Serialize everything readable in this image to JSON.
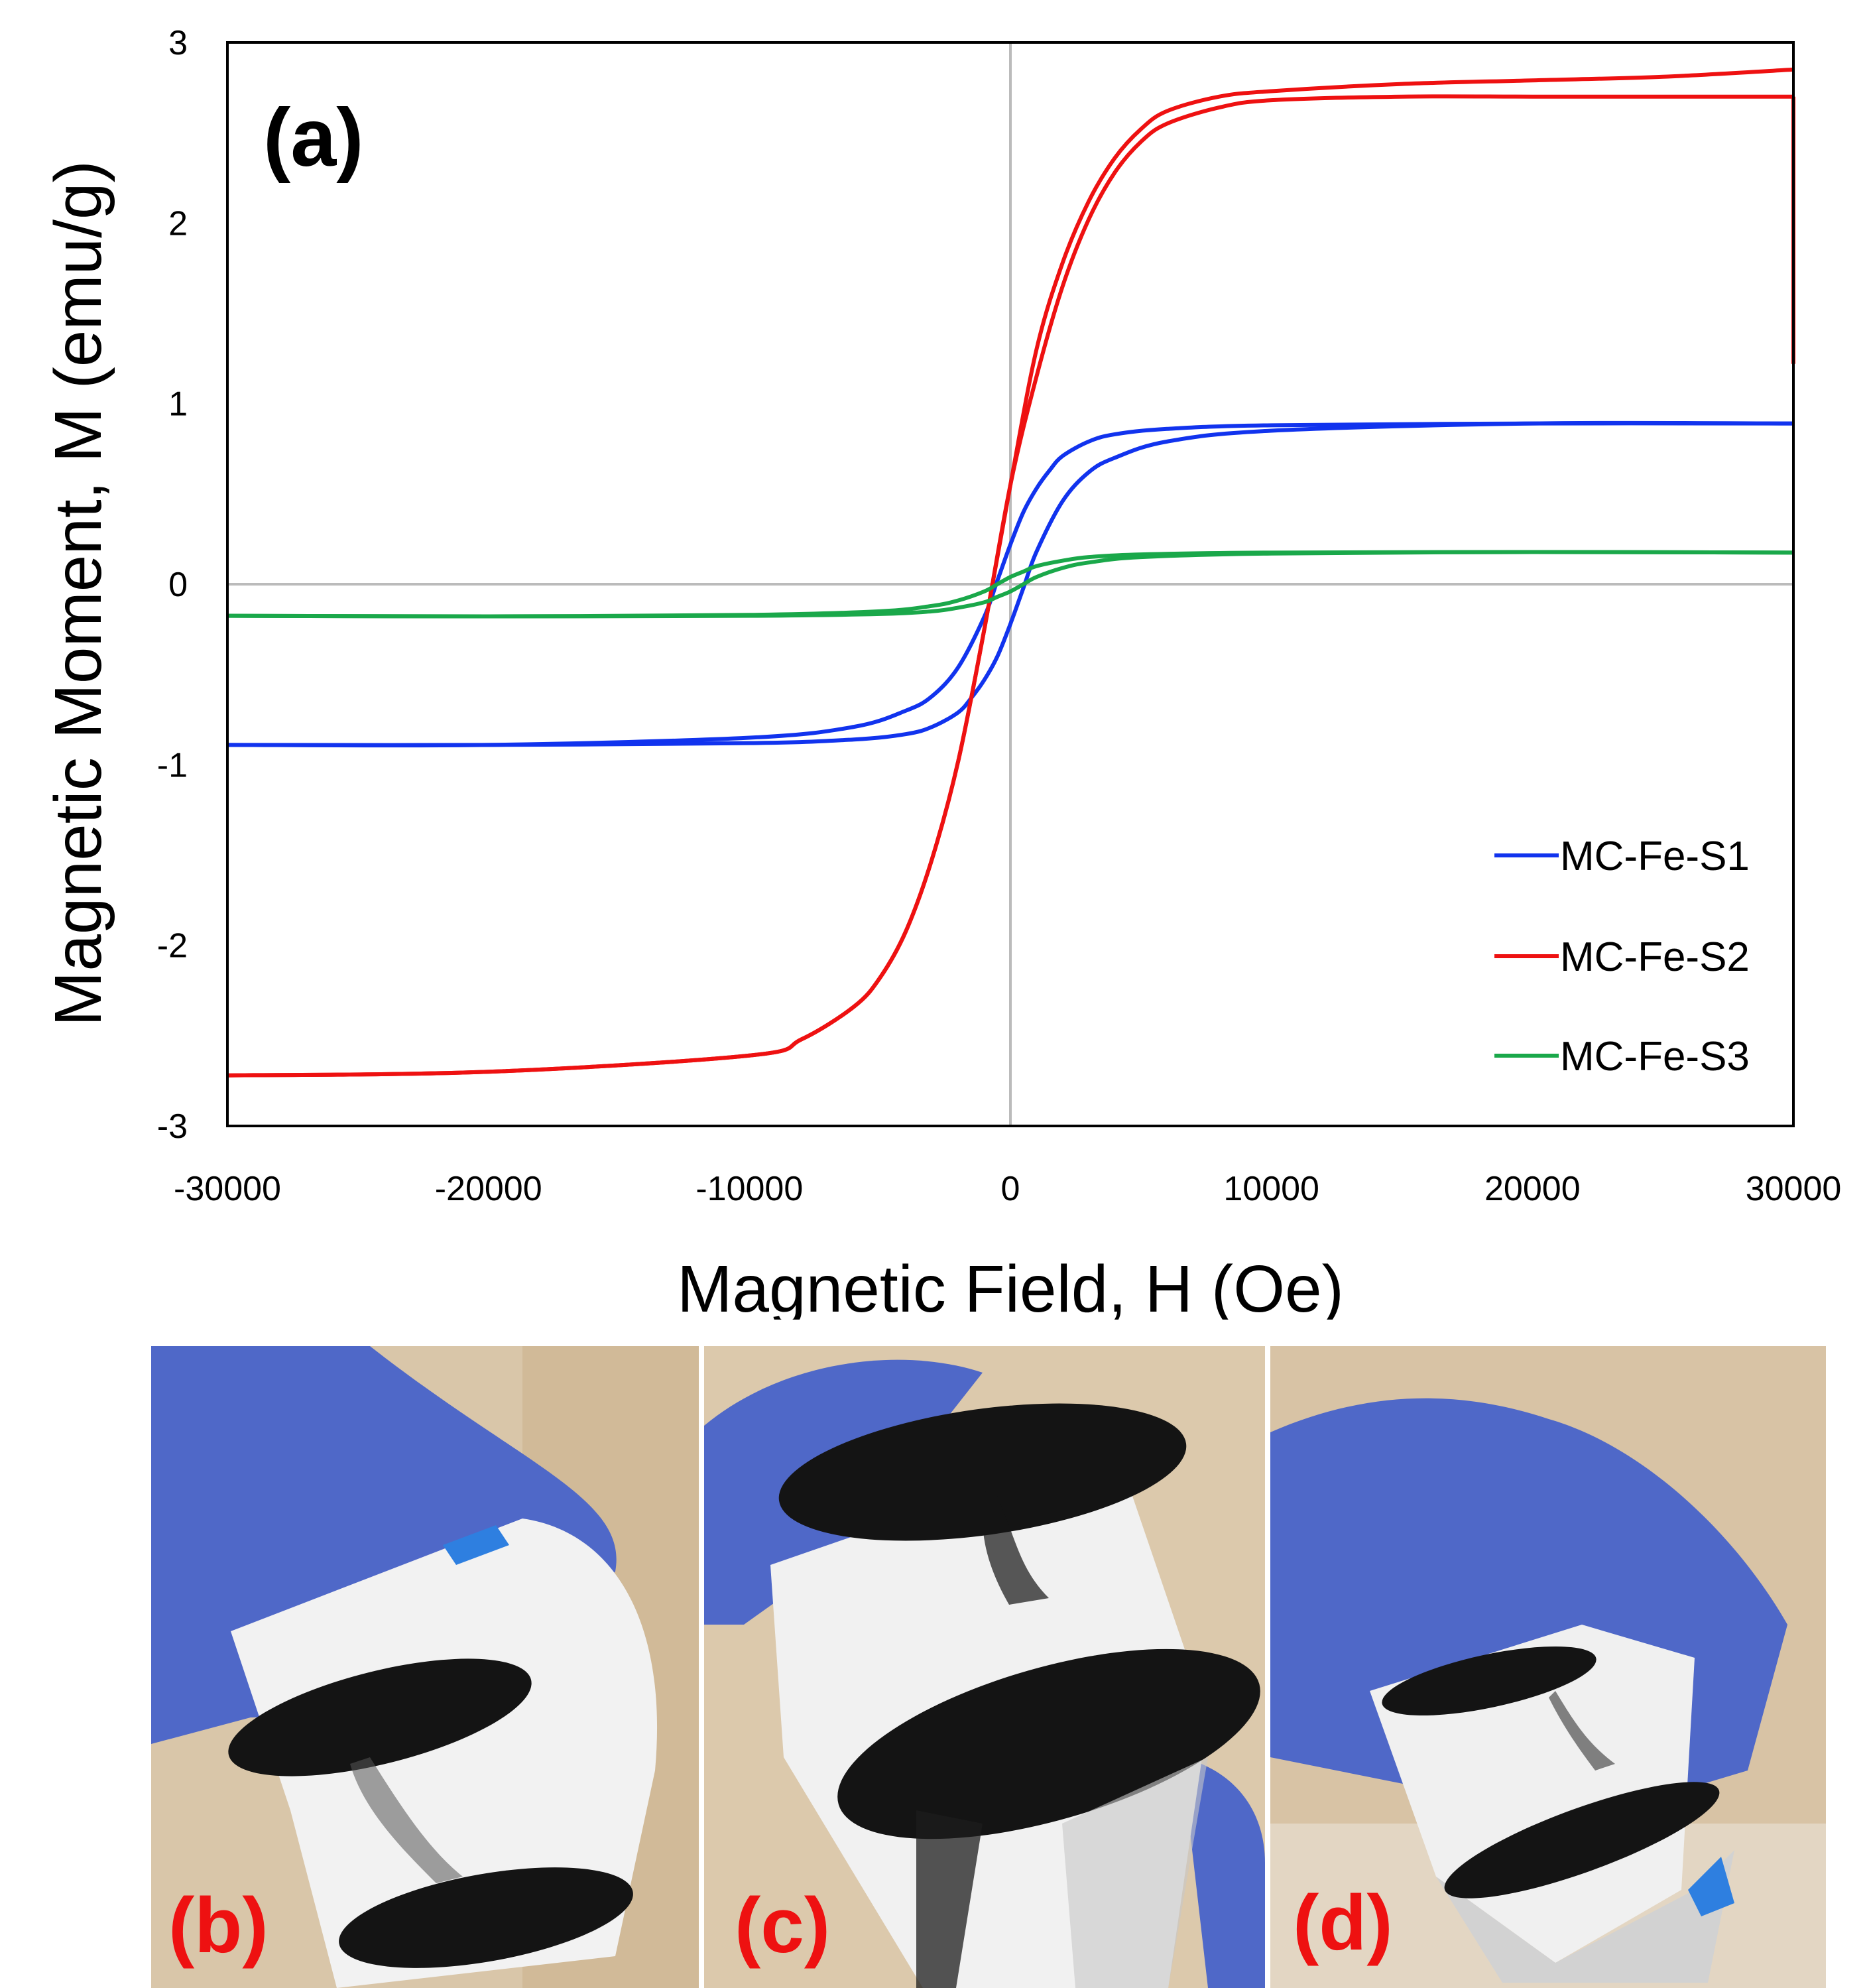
{
  "chart_data": {
    "type": "line",
    "panel_label": "(a)",
    "xlabel": "Magnetic Field, H (Oe)",
    "ylabel": "Magnetic Moment, M  (emu/g)",
    "xlim": [
      -30000,
      30000
    ],
    "ylim": [
      -3,
      3
    ],
    "x_ticks": [
      -30000,
      -20000,
      -10000,
      0,
      10000,
      20000,
      30000
    ],
    "x_tick_labels": [
      "-30000",
      "-20000",
      "-10000",
      "0",
      "10000",
      "20000",
      "30000"
    ],
    "y_ticks": [
      -3,
      -2,
      -1,
      0,
      1,
      2,
      3
    ],
    "y_tick_labels": [
      "-3",
      "-2",
      "-1",
      "0",
      "1",
      "2",
      "3"
    ],
    "zero_lines": true,
    "legend_position": "lower-right",
    "series": [
      {
        "name": "MC-Fe-S1",
        "color": "#1133ee",
        "branches": [
          {
            "label": "descending",
            "x": [
              30000,
              20000,
              10000,
              6000,
              4000,
              3000,
              2000,
              1500,
              1000,
              500,
              0,
              -500,
              -1000,
              -2000,
              -3000,
              -4000,
              -6000,
              -10000,
              -20000,
              -30000
            ],
            "y": [
              0.89,
              0.89,
              0.88,
              0.86,
              0.83,
              0.79,
              0.71,
              0.63,
              0.53,
              0.4,
              0.22,
              0.02,
              -0.18,
              -0.46,
              -0.62,
              -0.7,
              -0.79,
              -0.85,
              -0.89,
              -0.89
            ]
          },
          {
            "label": "ascending",
            "x": [
              -30000,
              -20000,
              -10000,
              -6000,
              -4000,
              -3000,
              -2000,
              -1500,
              -1000,
              -500,
              0,
              500,
              1000,
              2000,
              3000,
              4000,
              6000,
              10000,
              20000,
              30000
            ],
            "y": [
              -0.89,
              -0.89,
              -0.88,
              -0.86,
              -0.83,
              -0.79,
              -0.71,
              -0.63,
              -0.53,
              -0.4,
              -0.22,
              -0.02,
              0.18,
              0.46,
              0.62,
              0.7,
              0.79,
              0.85,
              0.89,
              0.89
            ]
          }
        ]
      },
      {
        "name": "MC-Fe-S2",
        "color": "#ee1111",
        "branches": [
          {
            "label": "descending",
            "x": [
              30000,
              25000,
              20000,
              15000,
              10000,
              8000,
              6000,
              5000,
              4000,
              3000,
              2000,
              1000,
              0,
              -1000,
              -2000,
              -3000,
              -4000,
              -5000,
              -6000,
              -8000,
              -10000,
              -20000,
              -30000
            ],
            "y": [
              2.85,
              2.81,
              2.79,
              2.77,
              2.73,
              2.7,
              2.62,
              2.52,
              2.36,
              2.12,
              1.78,
              1.3,
              0.55,
              -0.25,
              -0.98,
              -1.52,
              -1.92,
              -2.18,
              -2.34,
              -2.52,
              -2.61,
              -2.7,
              -2.72
            ]
          },
          {
            "label": "ascending",
            "x": [
              -30000,
              -20000,
              -10000,
              -8000,
              -6000,
              -5000,
              -4000,
              -3000,
              -2000,
              -1000,
              0,
              1000,
              2000,
              3000,
              4000,
              5000,
              6000,
              8000,
              10000,
              15000,
              20000,
              25000,
              30000
            ],
            "y": [
              -2.72,
              -2.7,
              -2.61,
              -2.52,
              -2.34,
              -2.18,
              -1.92,
              -1.52,
              -0.98,
              -0.25,
              0.55,
              1.15,
              1.65,
              2.02,
              2.28,
              2.45,
              2.55,
              2.64,
              2.68,
              2.7,
              2.7,
              2.7,
              2.7
            ]
          },
          {
            "label": "relaxation at max field",
            "x": [
              30000,
              30000
            ],
            "y": [
              2.7,
              1.22
            ]
          }
        ]
      },
      {
        "name": "MC-Fe-S3",
        "color": "#1aa84a",
        "branches": [
          {
            "label": "descending",
            "x": [
              30000,
              20000,
              10000,
              5000,
              3000,
              2000,
              1000,
              500,
              0,
              -500,
              -1000,
              -2000,
              -3000,
              -5000,
              -10000,
              -20000,
              -30000
            ],
            "y": [
              0.175,
              0.178,
              0.175,
              0.165,
              0.15,
              0.13,
              0.1,
              0.07,
              0.04,
              0.0,
              -0.04,
              -0.09,
              -0.12,
              -0.15,
              -0.17,
              -0.178,
              -0.175
            ]
          },
          {
            "label": "ascending",
            "x": [
              -30000,
              -20000,
              -10000,
              -5000,
              -3000,
              -2000,
              -1000,
              -500,
              0,
              500,
              1000,
              2000,
              3000,
              5000,
              10000,
              20000,
              30000
            ],
            "y": [
              -0.175,
              -0.178,
              -0.175,
              -0.165,
              -0.15,
              -0.13,
              -0.1,
              -0.07,
              -0.04,
              0.0,
              0.04,
              0.09,
              0.12,
              0.15,
              0.17,
              0.178,
              0.175
            ]
          }
        ]
      }
    ]
  },
  "photos": [
    {
      "label": "(b)"
    },
    {
      "label": "(c)"
    },
    {
      "label": "(d)"
    }
  ],
  "colors": {
    "axis": "#000000",
    "zero_line": "#bbbbbb",
    "photo_label": "#ee1111",
    "glove": "#4f68c8",
    "carbon": "#141414",
    "wood": "#d8c3a5"
  }
}
